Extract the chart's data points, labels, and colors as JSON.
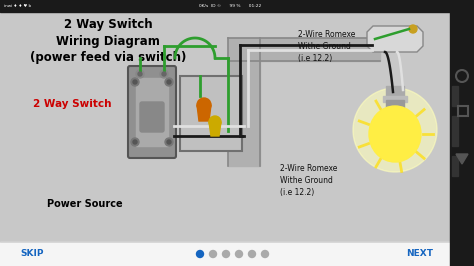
{
  "bg_color": "#d0d0d0",
  "diagram_bg": "#c8c8c8",
  "status_bar_color": "#1a1a1a",
  "bottom_bar_color": "#f5f5f5",
  "title_text": "2 Way Switch\nWiring Diagram\n(power feed via switch)",
  "title_color": "#000000",
  "title_fontsize": 8.5,
  "label_2way": "2 Way Switch",
  "label_2way_color": "#cc0000",
  "label_power": "Power Source",
  "label_power_color": "#000000",
  "label_top_wire": "2-Wire Romexe\nWithe Ground\n(i.e 12.2)",
  "label_bot_wire": "2-Wire Romexe\nWithe Ground\n(i.e 12.2)",
  "skip_text": "SKIP",
  "next_text": "NEXT",
  "nav_color": "#1565c0",
  "wire_black": "#1a1a1a",
  "wire_green": "#2e9e2e",
  "wire_white": "#e0e0e0",
  "wire_bare": "#b8860b",
  "conduit_fill": "#b0b0b0",
  "conduit_edge": "#888888",
  "switch_fill": "#909090",
  "box_fill": "#c0c0c0",
  "box_edge": "#707070",
  "bulb_yellow": "#ffee44",
  "bulb_glow": "#ffffaa",
  "orange_nut": "#cc6600",
  "yellow_nut": "#ccaa00",
  "fixture_fill": "#d8d8d8",
  "android_bg": "#1a1a1a",
  "dot_active": "#1565c0",
  "dot_inactive": "#aaaaaa"
}
